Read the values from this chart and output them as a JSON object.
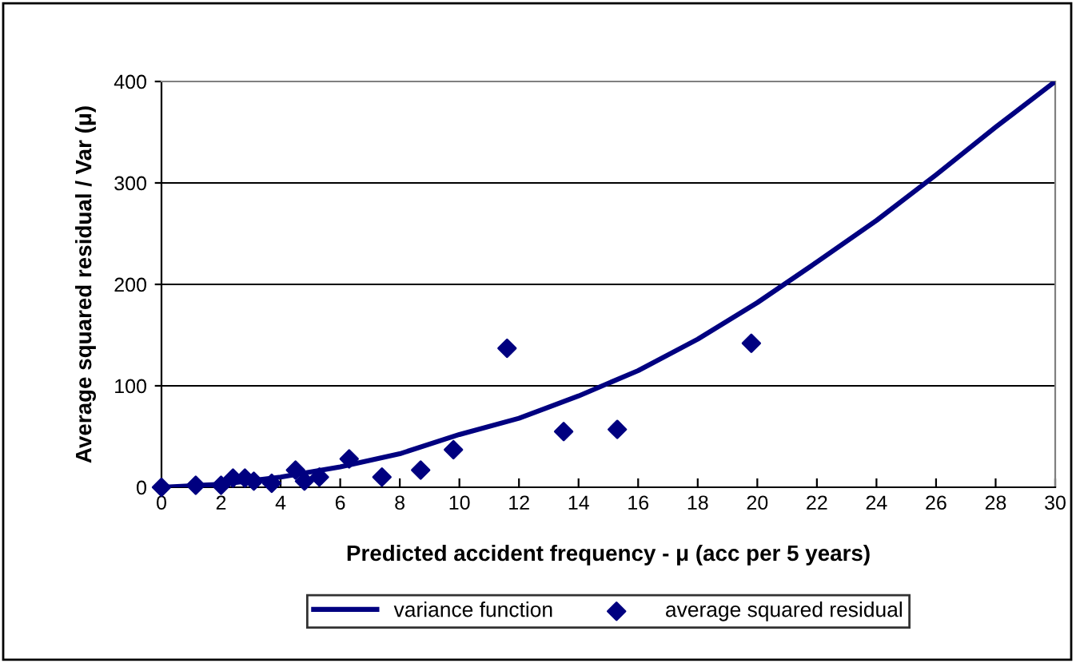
{
  "chart_data": {
    "type": "line",
    "xlabel": "Predicted accident frequency - μ (acc per 5 years)",
    "ylabel": "Average squared residual / Var (μ)",
    "xlim": [
      0,
      30
    ],
    "xticks": [
      0,
      2,
      4,
      6,
      8,
      10,
      12,
      14,
      16,
      18,
      20,
      22,
      24,
      26,
      28,
      30
    ],
    "ylim": [
      0,
      400
    ],
    "yticks": [
      0,
      100,
      200,
      300,
      400
    ],
    "grid": "y",
    "legend": "bottom",
    "series": [
      {
        "name": "variance function",
        "color": "#000080",
        "marker": "none",
        "x": [
          0,
          2,
          4,
          6,
          8,
          10,
          12,
          14,
          16,
          18,
          20,
          22,
          24,
          26,
          28,
          30
        ],
        "values": [
          0,
          3,
          10,
          20,
          33,
          52,
          68,
          90,
          115,
          146,
          182,
          222,
          263,
          308,
          355,
          400
        ]
      },
      {
        "name": "average squared residual",
        "type": "scatter",
        "color": "#000080",
        "marker": "diamond",
        "x": [
          0,
          1.15,
          2.0,
          2.4,
          2.8,
          3.1,
          3.7,
          4.5,
          4.8,
          5.3,
          6.3,
          7.4,
          8.7,
          9.8,
          11.6,
          13.5,
          15.3,
          19.8
        ],
        "values": [
          0,
          2,
          2,
          9,
          9,
          6,
          4,
          17,
          6,
          10,
          28,
          10,
          17,
          37,
          137,
          55,
          57,
          142
        ]
      }
    ]
  }
}
